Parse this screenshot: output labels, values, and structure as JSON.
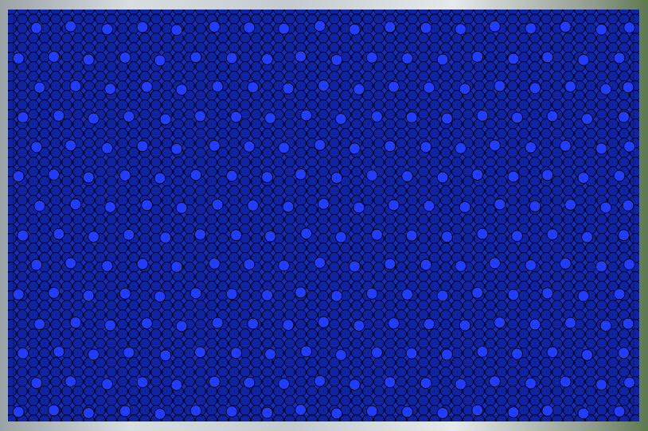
{
  "chart_data": {
    "type": "scatter",
    "xlim": [
      0,
      100
    ],
    "ylim": [
      0,
      100
    ],
    "tick_labels": false,
    "grid": false,
    "color": "#1f3cff",
    "marker": "circle",
    "x": [
      0.8,
      6.5,
      12.1,
      18.0,
      23.6,
      29.4,
      35.2,
      40.9,
      46.3,
      52.1,
      57.8,
      63.5,
      69.2,
      74.8,
      80.6,
      86.1,
      91.9,
      97.7,
      3.7,
      9.2,
      15.1,
      20.8,
      26.3,
      32.4,
      38.0,
      43.6,
      49.4,
      55.0,
      60.7,
      66.5,
      72.1,
      77.6,
      83.4,
      89.0,
      94.8,
      99.3,
      1.5,
      7.3,
      12.9,
      18.6,
      24.5,
      30.1,
      35.9,
      41.4,
      47.2,
      52.8,
      58.6,
      64.2,
      69.9,
      75.6,
      81.2,
      86.9,
      92.5,
      98.4,
      4.2,
      10.0,
      15.6,
      21.5,
      27.1,
      32.9,
      38.6,
      44.3,
      50.0,
      55.7,
      61.3,
      67.0,
      72.8,
      78.4,
      84.1,
      89.8,
      95.5,
      99.1,
      0.8,
      6.5,
      12.1,
      18.0,
      23.6,
      29.4,
      35.2,
      40.9,
      46.3,
      52.1,
      57.8,
      63.5,
      69.2,
      74.8,
      80.6,
      86.1,
      91.9,
      97.7,
      3.7,
      9.2,
      15.1,
      20.8,
      26.3,
      32.4,
      38.0,
      43.6,
      49.4,
      55.0,
      60.7,
      66.5,
      72.1,
      77.6,
      83.4,
      89.0,
      94.8,
      99.3,
      1.5,
      7.3,
      12.9,
      18.6,
      24.5,
      30.1,
      35.9,
      41.4,
      47.2,
      52.8,
      58.6,
      64.2,
      69.9,
      75.6,
      81.2,
      86.9,
      92.5,
      98.4,
      4.2,
      10.0,
      15.6,
      21.5,
      27.1,
      32.9,
      38.6,
      44.3,
      50.0,
      55.7,
      61.3,
      67.0,
      72.8,
      78.4,
      84.1,
      89.8,
      95.5,
      99.1,
      0.8,
      6.5,
      12.1,
      18.0,
      23.6,
      29.4,
      35.2,
      40.9,
      46.3,
      52.1,
      57.8,
      63.5,
      69.2,
      74.8,
      80.6,
      86.1,
      91.9,
      97.7,
      3.7,
      9.2,
      15.1,
      20.8,
      26.3,
      32.4,
      38.0,
      43.6,
      49.4,
      55.0,
      60.7,
      66.5,
      72.1,
      77.6,
      83.4,
      89.0,
      94.8,
      99.3,
      1.5,
      7.3,
      12.9,
      18.6,
      24.5,
      30.1,
      35.9,
      41.4,
      47.2,
      52.8,
      58.6,
      64.2,
      69.9,
      75.6,
      81.2,
      86.9,
      92.5,
      98.4,
      4.2,
      10.0,
      15.6,
      21.5,
      27.1,
      32.9,
      38.6,
      44.3,
      50.0,
      55.7,
      61.3,
      67.0,
      72.8,
      78.4,
      84.1,
      89.8,
      95.5,
      99.1,
      0.8,
      6.5,
      12.1,
      18.0,
      23.6,
      29.4,
      35.2,
      40.9,
      46.3,
      52.1,
      57.8,
      63.5,
      69.2,
      74.8,
      80.6,
      86.1,
      91.9,
      97.7,
      3.7,
      9.2,
      15.1,
      20.8,
      26.3,
      32.4,
      38.0,
      43.6,
      49.4,
      55.0,
      60.7,
      66.5,
      72.1,
      77.6,
      83.4,
      89.0,
      94.8,
      99.3
    ],
    "values": [
      1.0,
      1.4,
      0.7,
      1.2,
      0.5,
      1.3,
      1.1,
      0.8,
      1.5,
      0.6,
      1.2,
      1.0,
      0.7,
      1.4,
      0.9,
      1.3,
      0.6,
      1.1,
      8.2,
      8.6,
      7.9,
      8.4,
      7.7,
      8.5,
      8.3,
      8.0,
      8.7,
      7.8,
      8.4,
      8.2,
      7.9,
      8.6,
      8.1,
      8.5,
      7.8,
      8.3,
      15.6,
      16.0,
      15.3,
      15.8,
      15.1,
      15.9,
      15.7,
      15.4,
      16.1,
      15.2,
      15.8,
      15.6,
      15.3,
      16.0,
      15.5,
      15.9,
      15.2,
      15.7,
      22.9,
      23.3,
      22.6,
      23.1,
      22.4,
      23.2,
      23.0,
      22.7,
      23.4,
      22.5,
      23.1,
      22.9,
      22.6,
      23.3,
      22.8,
      23.2,
      22.5,
      23.0,
      30.3,
      30.7,
      30.0,
      30.5,
      29.8,
      30.6,
      30.4,
      30.1,
      30.8,
      29.9,
      30.5,
      30.3,
      30.0,
      30.7,
      30.2,
      30.6,
      29.9,
      30.4,
      37.7,
      38.1,
      37.4,
      37.9,
      37.2,
      38.0,
      37.8,
      37.5,
      38.2,
      37.3,
      37.9,
      37.7,
      37.4,
      38.1,
      37.6,
      38.0,
      37.3,
      37.8,
      45.0,
      45.4,
      44.7,
      45.2,
      44.5,
      45.3,
      45.1,
      44.8,
      45.5,
      44.6,
      45.2,
      45.0,
      44.7,
      45.4,
      44.9,
      45.3,
      44.6,
      45.1,
      52.4,
      52.8,
      52.1,
      52.6,
      51.9,
      52.7,
      52.5,
      52.2,
      52.9,
      52.0,
      52.6,
      52.4,
      52.1,
      52.8,
      52.3,
      52.7,
      52.0,
      52.5,
      59.8,
      60.2,
      59.5,
      60.0,
      59.3,
      60.1,
      59.9,
      59.6,
      60.3,
      59.4,
      60.0,
      59.8,
      59.5,
      60.2,
      59.7,
      60.1,
      59.4,
      59.9,
      67.1,
      67.5,
      66.8,
      67.3,
      66.6,
      67.4,
      67.2,
      66.9,
      67.6,
      66.7,
      67.3,
      67.1,
      66.8,
      67.5,
      67.0,
      67.4,
      66.7,
      67.2,
      74.5,
      74.9,
      74.2,
      74.7,
      74.0,
      74.8,
      74.6,
      74.3,
      75.0,
      74.1,
      74.7,
      74.5,
      74.2,
      74.9,
      74.4,
      74.8,
      74.1,
      74.6,
      81.9,
      82.3,
      81.6,
      82.1,
      81.4,
      82.2,
      82.0,
      81.7,
      82.4,
      81.5,
      82.1,
      81.9,
      81.6,
      82.3,
      81.8,
      82.2,
      81.5,
      82.0,
      89.2,
      89.6,
      88.9,
      89.4,
      88.7,
      89.5,
      89.3,
      89.0,
      89.7,
      88.8,
      89.4,
      89.2,
      88.9,
      89.6,
      89.1,
      89.5,
      88.8,
      89.3,
      96.8,
      97.2,
      96.5,
      97.0,
      96.3,
      97.1,
      96.9,
      96.6,
      97.3,
      96.4,
      97.0,
      96.8,
      96.5,
      97.2,
      96.7,
      97.1,
      96.4,
      96.9
    ]
  }
}
